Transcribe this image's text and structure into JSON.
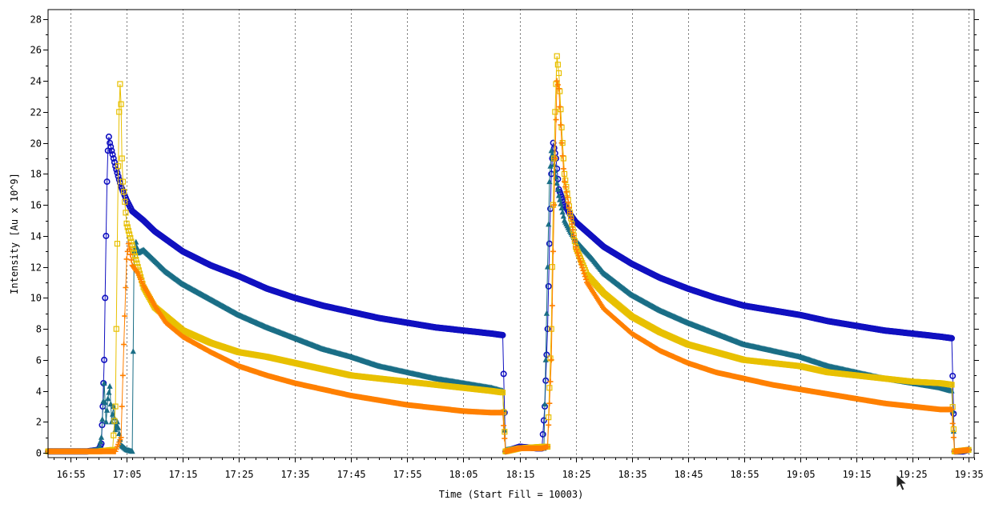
{
  "chart_data": {
    "type": "scatter",
    "xlabel": "Time (Start Fill = 10003)",
    "ylabel": "Intensity [Au x 10^9]",
    "xlim": [
      "16:51",
      "19:36"
    ],
    "ylim": [
      -0.3,
      28.6
    ],
    "x_ticks": [
      "16:55",
      "17:05",
      "17:15",
      "17:25",
      "17:35",
      "17:45",
      "17:55",
      "18:05",
      "18:15",
      "18:25",
      "18:35",
      "18:45",
      "18:55",
      "19:05",
      "19:15",
      "19:25",
      "19:35"
    ],
    "y_ticks": [
      0,
      2,
      4,
      6,
      8,
      10,
      12,
      14,
      16,
      18,
      20,
      22,
      24,
      26,
      28
    ],
    "grid": "vertical dotted lines at x ticks",
    "legend": "none",
    "series": [
      {
        "color": "#1010c0",
        "marker": "circle",
        "points": [
          [
            "16:51",
            0.1
          ],
          [
            "16:55",
            0.1
          ],
          [
            "16:58",
            0.1
          ],
          [
            "17:00",
            0.2
          ],
          [
            "17:00:30",
            0.6
          ],
          [
            "17:00:45",
            3.0
          ],
          [
            "17:01",
            6.0
          ],
          [
            "17:01:10",
            10.0
          ],
          [
            "17:01:20",
            14.0
          ],
          [
            "17:01:30",
            17.5
          ],
          [
            "17:01:40",
            19.5
          ],
          [
            "17:01:50",
            20.4
          ],
          [
            "17:02",
            20.0
          ],
          [
            "17:03",
            18.5
          ],
          [
            "17:04",
            17.2
          ],
          [
            "17:05",
            16.3
          ],
          [
            "17:06",
            15.6
          ],
          [
            "17:08",
            15.0
          ],
          [
            "17:10",
            14.3
          ],
          [
            "17:15",
            13.0
          ],
          [
            "17:20",
            12.1
          ],
          [
            "17:25",
            11.4
          ],
          [
            "17:30",
            10.6
          ],
          [
            "17:35",
            10.0
          ],
          [
            "17:40",
            9.5
          ],
          [
            "17:45",
            9.1
          ],
          [
            "17:50",
            8.7
          ],
          [
            "17:55",
            8.4
          ],
          [
            "18:00",
            8.1
          ],
          [
            "18:05",
            7.9
          ],
          [
            "18:10",
            7.7
          ],
          [
            "18:12",
            7.6
          ],
          [
            "18:12:30",
            0.1
          ],
          [
            "18:15",
            0.4
          ],
          [
            "18:18",
            0.3
          ],
          [
            "18:19",
            0.3
          ],
          [
            "18:19:30",
            3.0
          ],
          [
            "18:20",
            8.0
          ],
          [
            "18:20:20",
            13.5
          ],
          [
            "18:20:40",
            18.0
          ],
          [
            "18:21",
            20.0
          ],
          [
            "18:21:30",
            19.0
          ],
          [
            "18:22",
            17.0
          ],
          [
            "18:23",
            16.0
          ],
          [
            "18:24",
            15.4
          ],
          [
            "18:25",
            14.9
          ],
          [
            "18:30",
            13.3
          ],
          [
            "18:35",
            12.2
          ],
          [
            "18:40",
            11.3
          ],
          [
            "18:45",
            10.6
          ],
          [
            "18:50",
            10.0
          ],
          [
            "18:55",
            9.5
          ],
          [
            "19:00",
            9.2
          ],
          [
            "19:05",
            8.9
          ],
          [
            "19:10",
            8.5
          ],
          [
            "19:15",
            8.2
          ],
          [
            "19:20",
            7.9
          ],
          [
            "19:25",
            7.7
          ],
          [
            "19:30",
            7.5
          ],
          [
            "19:32",
            7.4
          ],
          [
            "19:32:30",
            0.1
          ],
          [
            "19:34",
            0.1
          ],
          [
            "19:35",
            0.2
          ]
        ]
      },
      {
        "color": "#1a6e86",
        "marker": "triangle",
        "points": [
          [
            "16:51",
            0.1
          ],
          [
            "16:58",
            0.1
          ],
          [
            "17:00",
            0.2
          ],
          [
            "17:00:30",
            1.0
          ],
          [
            "17:01",
            4.5
          ],
          [
            "17:01:20",
            2.0
          ],
          [
            "17:01:40",
            3.5
          ],
          [
            "17:02",
            4.3
          ],
          [
            "17:02:20",
            2.0
          ],
          [
            "17:02:40",
            3.0
          ],
          [
            "17:03",
            1.5
          ],
          [
            "17:03:20",
            2.0
          ],
          [
            "17:04",
            0.5
          ],
          [
            "17:05",
            0.2
          ],
          [
            "17:06",
            0.1
          ],
          [
            "17:06:20",
            13.0
          ],
          [
            "17:06:40",
            13.6
          ],
          [
            "17:07",
            12.9
          ],
          [
            "17:08",
            13.1
          ],
          [
            "17:10",
            12.4
          ],
          [
            "17:12",
            11.7
          ],
          [
            "17:15",
            10.9
          ],
          [
            "17:20",
            9.9
          ],
          [
            "17:25",
            8.9
          ],
          [
            "17:30",
            8.1
          ],
          [
            "17:35",
            7.4
          ],
          [
            "17:40",
            6.7
          ],
          [
            "17:45",
            6.2
          ],
          [
            "17:50",
            5.6
          ],
          [
            "17:55",
            5.2
          ],
          [
            "18:00",
            4.8
          ],
          [
            "18:05",
            4.5
          ],
          [
            "18:10",
            4.2
          ],
          [
            "18:12",
            4.0
          ],
          [
            "18:12:30",
            0.2
          ],
          [
            "18:15",
            0.3
          ],
          [
            "18:18",
            0.3
          ],
          [
            "18:19:20",
            0.3
          ],
          [
            "18:19:40",
            6.0
          ],
          [
            "18:20",
            12.0
          ],
          [
            "18:20:20",
            17.5
          ],
          [
            "18:20:40",
            19.5
          ],
          [
            "18:21",
            19.0
          ],
          [
            "18:22",
            16.6
          ],
          [
            "18:23",
            15.0
          ],
          [
            "18:24",
            14.3
          ],
          [
            "18:25",
            13.7
          ],
          [
            "18:28",
            12.5
          ],
          [
            "18:30",
            11.6
          ],
          [
            "18:35",
            10.2
          ],
          [
            "18:40",
            9.2
          ],
          [
            "18:45",
            8.4
          ],
          [
            "18:50",
            7.7
          ],
          [
            "18:55",
            7.0
          ],
          [
            "19:00",
            6.6
          ],
          [
            "19:05",
            6.2
          ],
          [
            "19:10",
            5.6
          ],
          [
            "19:15",
            5.2
          ],
          [
            "19:20",
            4.8
          ],
          [
            "19:25",
            4.5
          ],
          [
            "19:30",
            4.2
          ],
          [
            "19:32",
            4.0
          ],
          [
            "19:32:30",
            0.1
          ],
          [
            "19:35",
            0.2
          ]
        ]
      },
      {
        "color": "#e8c000",
        "marker": "square",
        "points": [
          [
            "16:51",
            0.1
          ],
          [
            "17:00",
            0.1
          ],
          [
            "17:02:30",
            0.2
          ],
          [
            "17:03",
            3.0
          ],
          [
            "17:03:10",
            8.0
          ],
          [
            "17:03:20",
            13.5
          ],
          [
            "17:03:30",
            18.5
          ],
          [
            "17:03:40",
            22.0
          ],
          [
            "17:03:50",
            23.8
          ],
          [
            "17:04",
            22.5
          ],
          [
            "17:04:10",
            19.0
          ],
          [
            "17:04:20",
            17.5
          ],
          [
            "17:04:40",
            16.2
          ],
          [
            "17:05",
            14.8
          ],
          [
            "17:06",
            13.4
          ],
          [
            "17:07",
            12.0
          ],
          [
            "17:08",
            10.7
          ],
          [
            "17:10",
            9.4
          ],
          [
            "17:15",
            7.9
          ],
          [
            "17:20",
            7.1
          ],
          [
            "17:25",
            6.5
          ],
          [
            "17:30",
            6.2
          ],
          [
            "17:35",
            5.8
          ],
          [
            "17:40",
            5.4
          ],
          [
            "17:45",
            5.0
          ],
          [
            "17:50",
            4.8
          ],
          [
            "17:55",
            4.6
          ],
          [
            "18:00",
            4.4
          ],
          [
            "18:05",
            4.2
          ],
          [
            "18:10",
            4.0
          ],
          [
            "18:12",
            3.9
          ],
          [
            "18:12:30",
            0.1
          ],
          [
            "18:15",
            0.3
          ],
          [
            "18:19",
            0.4
          ],
          [
            "18:20",
            0.4
          ],
          [
            "18:20:40",
            8.0
          ],
          [
            "18:21",
            16.0
          ],
          [
            "18:21:20",
            22.0
          ],
          [
            "18:21:40",
            25.6
          ],
          [
            "18:22",
            24.5
          ],
          [
            "18:22:30",
            21.0
          ],
          [
            "18:23",
            18.0
          ],
          [
            "18:24",
            15.5
          ],
          [
            "18:25",
            13.3
          ],
          [
            "18:27",
            11.5
          ],
          [
            "18:30",
            10.3
          ],
          [
            "18:35",
            8.8
          ],
          [
            "18:40",
            7.8
          ],
          [
            "18:45",
            7.0
          ],
          [
            "18:50",
            6.5
          ],
          [
            "18:55",
            6.0
          ],
          [
            "19:00",
            5.8
          ],
          [
            "19:05",
            5.6
          ],
          [
            "19:10",
            5.2
          ],
          [
            "19:15",
            5.0
          ],
          [
            "19:20",
            4.8
          ],
          [
            "19:25",
            4.6
          ],
          [
            "19:30",
            4.5
          ],
          [
            "19:32",
            4.4
          ],
          [
            "19:32:30",
            0.1
          ],
          [
            "19:35",
            0.2
          ]
        ]
      },
      {
        "color": "#ff8000",
        "marker": "plus",
        "points": [
          [
            "16:51",
            0.1
          ],
          [
            "17:00",
            0.1
          ],
          [
            "17:03",
            0.1
          ],
          [
            "17:04",
            1.0
          ],
          [
            "17:04:30",
            7.0
          ],
          [
            "17:05",
            12.5
          ],
          [
            "17:05:20",
            13.5
          ],
          [
            "17:05:40",
            12.8
          ],
          [
            "17:06",
            12.1
          ],
          [
            "17:07",
            11.6
          ],
          [
            "17:08",
            10.8
          ],
          [
            "17:10",
            9.5
          ],
          [
            "17:12",
            8.4
          ],
          [
            "17:15",
            7.5
          ],
          [
            "17:20",
            6.5
          ],
          [
            "17:25",
            5.6
          ],
          [
            "17:30",
            5.0
          ],
          [
            "17:35",
            4.5
          ],
          [
            "17:40",
            4.1
          ],
          [
            "17:45",
            3.7
          ],
          [
            "17:50",
            3.4
          ],
          [
            "17:55",
            3.1
          ],
          [
            "18:00",
            2.9
          ],
          [
            "18:05",
            2.7
          ],
          [
            "18:10",
            2.6
          ],
          [
            "18:12",
            2.6
          ],
          [
            "18:12:30",
            0.1
          ],
          [
            "18:15",
            0.3
          ],
          [
            "18:19",
            0.3
          ],
          [
            "18:20",
            0.4
          ],
          [
            "18:20:40",
            6.0
          ],
          [
            "18:21",
            13.0
          ],
          [
            "18:21:20",
            19.0
          ],
          [
            "18:21:40",
            24.0
          ],
          [
            "18:22",
            23.5
          ],
          [
            "18:22:30",
            20.0
          ],
          [
            "18:23",
            17.5
          ],
          [
            "18:24",
            15.5
          ],
          [
            "18:25",
            13.3
          ],
          [
            "18:27",
            11.0
          ],
          [
            "18:30",
            9.3
          ],
          [
            "18:35",
            7.7
          ],
          [
            "18:40",
            6.6
          ],
          [
            "18:45",
            5.8
          ],
          [
            "18:50",
            5.2
          ],
          [
            "18:55",
            4.8
          ],
          [
            "19:00",
            4.4
          ],
          [
            "19:05",
            4.1
          ],
          [
            "19:10",
            3.8
          ],
          [
            "19:15",
            3.5
          ],
          [
            "19:20",
            3.2
          ],
          [
            "19:25",
            3.0
          ],
          [
            "19:30",
            2.8
          ],
          [
            "19:32",
            2.8
          ],
          [
            "19:32:30",
            0.1
          ],
          [
            "19:35",
            0.2
          ]
        ]
      }
    ]
  }
}
